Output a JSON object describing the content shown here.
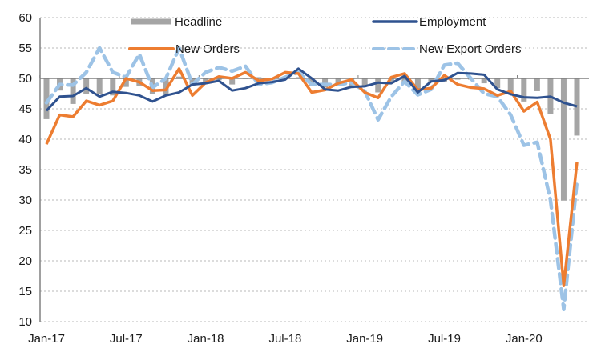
{
  "chart_data": {
    "type": "line",
    "title": "",
    "xlabel": "",
    "ylabel": "",
    "ylim": [
      10,
      60
    ],
    "yticks": [
      10,
      15,
      20,
      25,
      30,
      35,
      40,
      45,
      50,
      55,
      60
    ],
    "reference_line": 50,
    "grid": "horizontal dotted",
    "x_start": "Jan-17",
    "xtick_labels": [
      {
        "month_index": 0,
        "label": "Jan-17"
      },
      {
        "month_index": 6,
        "label": "Jul-17"
      },
      {
        "month_index": 12,
        "label": "Jan-18"
      },
      {
        "month_index": 18,
        "label": "Jul-18"
      },
      {
        "month_index": 24,
        "label": "Jan-19"
      },
      {
        "month_index": 30,
        "label": "Jul-19"
      },
      {
        "month_index": 36,
        "label": "Jan-20"
      }
    ],
    "legend": {
      "placement": "top",
      "entries": [
        "Headline",
        "Employment",
        "New Orders",
        "New Export Orders"
      ]
    },
    "series": [
      {
        "name": "Headline",
        "kind": "bar",
        "color": "#a5a5a5",
        "values": [
          43.3,
          48.0,
          45.8,
          47.4,
          47.5,
          47.2,
          48.6,
          48.8,
          47.4,
          47.3,
          50.3,
          48.8,
          49.4,
          49.7,
          49.0,
          49.9,
          50.2,
          49.8,
          50.0,
          50.2,
          48.7,
          48.5,
          48.8,
          48.4,
          48.8,
          47.7,
          49.3,
          49.1,
          48.3,
          49.4,
          49.5,
          49.8,
          49.8,
          49.2,
          48.4,
          47.6,
          46.2,
          47.9,
          44.1,
          29.9,
          40.6
        ]
      },
      {
        "name": "Employment",
        "kind": "line",
        "color": "#2f528f",
        "values": [
          44.7,
          47.0,
          47.1,
          48.4,
          47.0,
          47.8,
          47.6,
          47.2,
          46.2,
          47.2,
          47.7,
          49.0,
          49.2,
          49.6,
          48.0,
          48.4,
          49.2,
          49.4,
          49.8,
          51.6,
          50.0,
          48.2,
          48.0,
          48.6,
          48.7,
          49.3,
          49.2,
          50.4,
          47.7,
          49.5,
          49.7,
          50.9,
          50.8,
          50.6,
          48.2,
          47.4,
          46.9,
          46.8,
          47.0,
          46.0,
          45.4
        ]
      },
      {
        "name": "New Orders",
        "kind": "line",
        "color": "#ed7d31",
        "values": [
          39.2,
          44.0,
          43.7,
          46.3,
          45.6,
          46.3,
          50.0,
          49.4,
          48.0,
          48.1,
          51.6,
          47.2,
          49.3,
          50.3,
          50.0,
          51.0,
          49.6,
          49.9,
          51.0,
          50.8,
          47.7,
          48.1,
          49.2,
          49.8,
          47.7,
          46.8,
          50.2,
          50.8,
          48.1,
          48.4,
          50.5,
          49.0,
          48.5,
          48.3,
          47.2,
          47.9,
          44.6,
          46.1,
          40.0,
          15.9,
          36.2
        ]
      },
      {
        "name": "New Export Orders",
        "kind": "line-dashed",
        "color": "#9dc3e6",
        "values": [
          46.0,
          49.0,
          48.9,
          51.0,
          55.0,
          51.0,
          50.2,
          54.0,
          48.5,
          50.0,
          55.0,
          49.0,
          51.0,
          51.8,
          51.2,
          52.0,
          49.0,
          49.3,
          50.2,
          51.0,
          49.0,
          49.0,
          49.0,
          49.3,
          47.9,
          43.2,
          47.0,
          49.5,
          47.3,
          48.2,
          52.2,
          52.5,
          50.0,
          47.5,
          47.0,
          44.0,
          39.0,
          39.5,
          30.0,
          12.0,
          33.0
        ]
      }
    ]
  }
}
